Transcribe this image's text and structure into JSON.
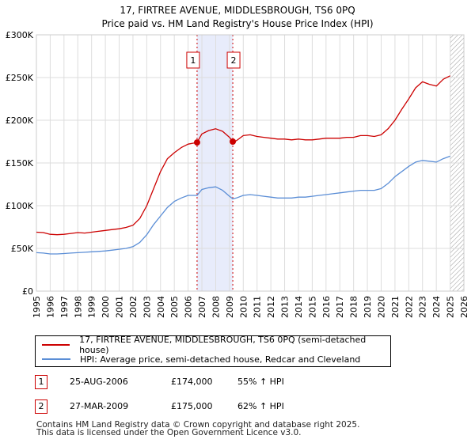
{
  "chart_data": {
    "type": "line",
    "title": "17, FIRTREE AVENUE, MIDDLESBROUGH, TS6 0PQ",
    "subtitle": "Price paid vs. HM Land Registry's House Price Index (HPI)",
    "xlabel": "",
    "ylabel": "",
    "xlim": [
      1995,
      2026
    ],
    "ylim": [
      0,
      300000
    ],
    "x_ticks": [
      "1995",
      "1996",
      "1997",
      "1998",
      "1999",
      "2000",
      "2001",
      "2002",
      "2003",
      "2004",
      "2005",
      "2006",
      "2007",
      "2008",
      "2009",
      "2010",
      "2011",
      "2012",
      "2013",
      "2014",
      "2015",
      "2016",
      "2017",
      "2018",
      "2019",
      "2020",
      "2021",
      "2022",
      "2023",
      "2024",
      "2025",
      "2026"
    ],
    "y_ticks": [
      {
        "value": 0,
        "label": "£0"
      },
      {
        "value": 50000,
        "label": "£50K"
      },
      {
        "value": 100000,
        "label": "£100K"
      },
      {
        "value": 150000,
        "label": "£150K"
      },
      {
        "value": 200000,
        "label": "£200K"
      },
      {
        "value": 250000,
        "label": "£250K"
      },
      {
        "value": 300000,
        "label": "£300K"
      }
    ],
    "grid": true,
    "shaded_region": {
      "from": 2006.65,
      "to": 2009.24
    },
    "forecast_start": 2025.0,
    "series": [
      {
        "name": "17, FIRTREE AVENUE, MIDDLESBROUGH, TS6 0PQ (semi-detached house)",
        "color": "#cc0000",
        "x": [
          1995.0,
          1995.5,
          1996.0,
          1996.5,
          1997.0,
          1997.5,
          1998.0,
          1998.5,
          1999.0,
          1999.5,
          2000.0,
          2000.5,
          2001.0,
          2001.5,
          2002.0,
          2002.5,
          2003.0,
          2003.5,
          2004.0,
          2004.5,
          2005.0,
          2005.5,
          2006.0,
          2006.65,
          2007.0,
          2007.5,
          2008.0,
          2008.5,
          2009.0,
          2009.24,
          2009.5,
          2010.0,
          2010.5,
          2011.0,
          2011.5,
          2012.0,
          2012.5,
          2013.0,
          2013.5,
          2014.0,
          2014.5,
          2015.0,
          2015.5,
          2016.0,
          2016.5,
          2017.0,
          2017.5,
          2018.0,
          2018.5,
          2019.0,
          2019.5,
          2020.0,
          2020.5,
          2021.0,
          2021.5,
          2022.0,
          2022.5,
          2023.0,
          2023.5,
          2024.0,
          2024.5,
          2025.0
        ],
        "values": [
          69000,
          68500,
          66500,
          66000,
          66500,
          67500,
          68500,
          68000,
          69000,
          70000,
          71000,
          72000,
          73000,
          74500,
          77000,
          85000,
          100000,
          120000,
          140000,
          155000,
          162000,
          168000,
          172000,
          174000,
          184000,
          188000,
          190000,
          187000,
          180000,
          175000,
          176000,
          182000,
          183000,
          181000,
          180000,
          179000,
          178000,
          178000,
          177000,
          178000,
          177000,
          177000,
          178000,
          179000,
          179000,
          179000,
          180000,
          180000,
          182000,
          182000,
          181000,
          183000,
          190000,
          200000,
          213000,
          225000,
          238000,
          245000,
          242000,
          240000,
          248000,
          252000
        ]
      },
      {
        "name": "HPI: Average price, semi-detached house, Redcar and Cleveland",
        "color": "#5b8ed6",
        "x": [
          1995.0,
          1995.5,
          1996.0,
          1996.5,
          1997.0,
          1997.5,
          1998.0,
          1998.5,
          1999.0,
          1999.5,
          2000.0,
          2000.5,
          2001.0,
          2001.5,
          2002.0,
          2002.5,
          2003.0,
          2003.5,
          2004.0,
          2004.5,
          2005.0,
          2005.5,
          2006.0,
          2006.65,
          2007.0,
          2007.5,
          2008.0,
          2008.5,
          2009.0,
          2009.24,
          2009.5,
          2010.0,
          2010.5,
          2011.0,
          2011.5,
          2012.0,
          2012.5,
          2013.0,
          2013.5,
          2014.0,
          2014.5,
          2015.0,
          2015.5,
          2016.0,
          2016.5,
          2017.0,
          2017.5,
          2018.0,
          2018.5,
          2019.0,
          2019.5,
          2020.0,
          2020.5,
          2021.0,
          2021.5,
          2022.0,
          2022.5,
          2023.0,
          2023.5,
          2024.0,
          2024.5,
          2025.0
        ],
        "values": [
          45000,
          44500,
          43500,
          43500,
          44000,
          44500,
          45000,
          45500,
          46000,
          46500,
          47000,
          48000,
          49000,
          50000,
          52000,
          57000,
          66000,
          78000,
          88000,
          98000,
          105000,
          109000,
          112000,
          112000,
          119000,
          121000,
          122000,
          118000,
          111000,
          108000,
          109000,
          112000,
          113000,
          112000,
          111000,
          110000,
          109000,
          109000,
          109000,
          110000,
          110000,
          111000,
          112000,
          113000,
          114000,
          115000,
          116000,
          117000,
          118000,
          118000,
          118000,
          120000,
          126000,
          134000,
          140000,
          146000,
          151000,
          153000,
          152000,
          151000,
          155000,
          158000
        ]
      }
    ],
    "sales": [
      {
        "label": "1",
        "x": 2006.65,
        "value": 174000
      },
      {
        "label": "2",
        "x": 2009.24,
        "value": 175000
      }
    ]
  },
  "legend": {
    "entries": [
      {
        "label": "17, FIRTREE AVENUE, MIDDLESBROUGH, TS6 0PQ (semi-detached house)",
        "color": "#cc0000"
      },
      {
        "label": "HPI: Average price, semi-detached house, Redcar and Cleveland",
        "color": "#5b8ed6"
      }
    ]
  },
  "transactions": [
    {
      "badge": "1",
      "date": "25-AUG-2006",
      "price": "£174,000",
      "hpi": "55% ↑ HPI"
    },
    {
      "badge": "2",
      "date": "27-MAR-2009",
      "price": "£175,000",
      "hpi": "62% ↑ HPI"
    }
  ],
  "footer": {
    "line1": "Contains HM Land Registry data © Crown copyright and database right 2025.",
    "line2": "This data is licensed under the Open Government Licence v3.0."
  }
}
